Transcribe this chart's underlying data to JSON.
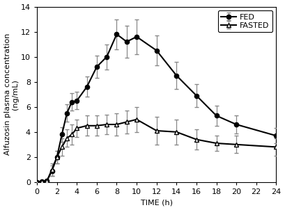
{
  "fed_time": [
    0,
    0.5,
    1,
    1.5,
    2,
    2.5,
    3,
    3.5,
    4,
    5,
    6,
    7,
    8,
    9,
    10,
    12,
    14,
    16,
    18,
    20,
    24
  ],
  "fed_mean": [
    0,
    0.05,
    0.1,
    0.9,
    2.0,
    3.8,
    5.5,
    6.4,
    6.5,
    7.6,
    9.2,
    10.0,
    11.8,
    11.2,
    11.6,
    10.5,
    8.5,
    6.9,
    5.3,
    4.6,
    3.7
  ],
  "fed_sem": [
    0,
    0.05,
    0.05,
    0.4,
    0.5,
    0.6,
    0.7,
    0.7,
    0.7,
    0.8,
    0.9,
    1.0,
    1.2,
    1.3,
    1.4,
    1.2,
    1.1,
    0.9,
    0.8,
    0.7,
    0.6
  ],
  "fasted_time": [
    0,
    0.5,
    1,
    1.5,
    2,
    2.5,
    3,
    3.5,
    4,
    5,
    6,
    7,
    8,
    9,
    10,
    12,
    14,
    16,
    18,
    20,
    24
  ],
  "fasted_mean": [
    0,
    0.05,
    0.1,
    1.0,
    2.0,
    2.8,
    3.5,
    3.8,
    4.3,
    4.5,
    4.5,
    4.6,
    4.6,
    4.8,
    5.0,
    4.1,
    4.0,
    3.4,
    3.1,
    3.0,
    2.8
  ],
  "fasted_sem": [
    0,
    0.05,
    0.05,
    0.5,
    0.5,
    0.7,
    0.7,
    0.8,
    0.7,
    0.8,
    0.8,
    0.8,
    0.9,
    0.9,
    1.0,
    1.1,
    1.0,
    0.8,
    0.6,
    0.7,
    0.7
  ],
  "xlabel": "TIME (h)",
  "ylabel_line1": "Alfuzosin plasma concentration",
  "ylabel_line2": "(ng/mL)",
  "xlim": [
    0,
    24
  ],
  "ylim": [
    0,
    14
  ],
  "xticks": [
    0,
    2,
    4,
    6,
    8,
    10,
    12,
    14,
    16,
    18,
    20,
    22,
    24
  ],
  "yticks": [
    0,
    2,
    4,
    6,
    8,
    10,
    12,
    14
  ],
  "fed_color": "#000000",
  "fasted_color": "#888888",
  "background_color": "#ffffff",
  "legend_fed": "FED",
  "legend_fasted": "FASTED",
  "linewidth": 1.5,
  "markersize": 4.5,
  "elinewidth": 0.9,
  "capsize": 2.5,
  "tick_fontsize": 8,
  "label_fontsize": 8,
  "legend_fontsize": 8
}
